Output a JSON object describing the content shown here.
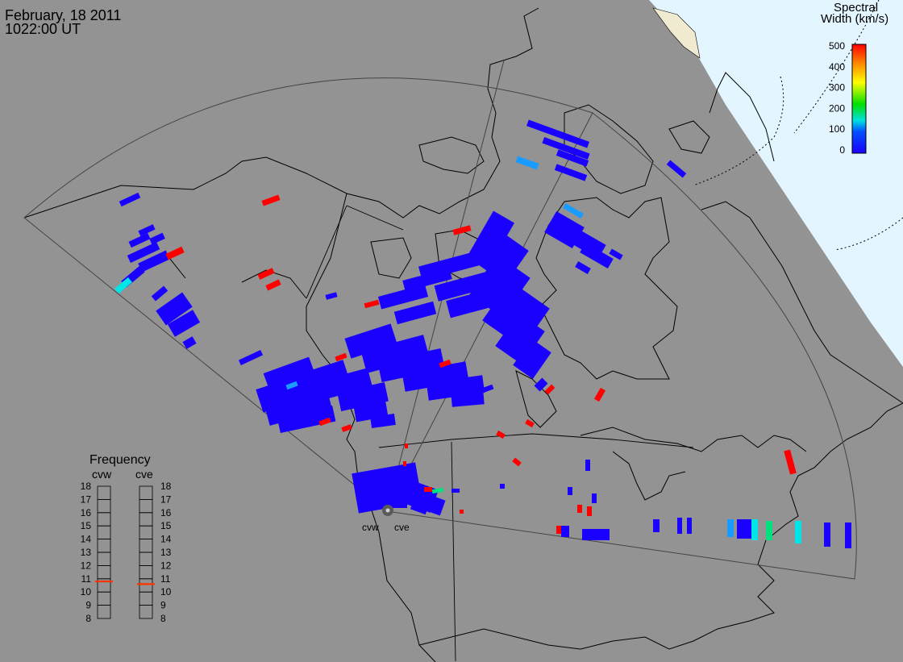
{
  "header": {
    "date": "February, 18 2011",
    "time": "1022:00 UT"
  },
  "colorbar": {
    "title_line1": "Spectral",
    "title_line2": "Width (km/s)",
    "ticks": [
      "500",
      "400",
      "300",
      "200",
      "100",
      "0"
    ],
    "scale_min": 0,
    "scale_max": 500,
    "gradient_colors": [
      "#ff0000",
      "#ff8c00",
      "#ffff00",
      "#00e000",
      "#00e0e0",
      "#0050ff",
      "#1a00ff"
    ]
  },
  "frequency": {
    "title": "Frequency",
    "radars": [
      {
        "code": "cvw",
        "value_mhz": 10.8
      },
      {
        "code": "cve",
        "value_mhz": 10.6
      }
    ],
    "scale": [
      "18",
      "17",
      "16",
      "15",
      "14",
      "13",
      "12",
      "11",
      "10",
      "9",
      "8"
    ],
    "scale_min": 8,
    "scale_max": 18
  },
  "stations": [
    {
      "code": "cvw"
    },
    {
      "code": "cve"
    }
  ],
  "colors": {
    "land_ocean_background": "#939393",
    "polar_dayside": "#e3f5ff",
    "scatter_low": "#1a00ff",
    "scatter_mid": "#1a9bff",
    "scatter_cyan": "#00e6e6",
    "scatter_green": "#00e080",
    "scatter_high": "#ff0000"
  }
}
